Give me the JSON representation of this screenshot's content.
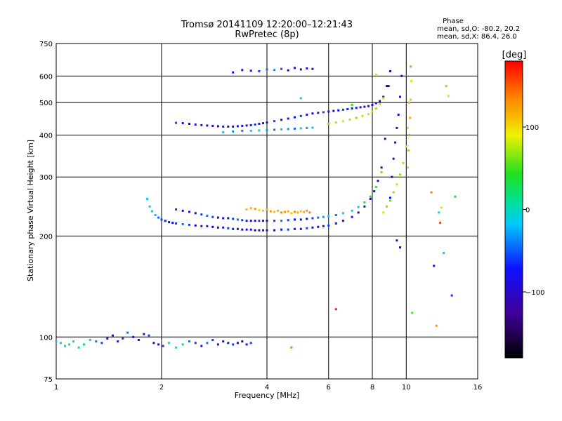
{
  "chart_data": {
    "type": "scatter",
    "title": "Tromsø 20141109 12:20:00–12:21:43",
    "subtitle": "RwPretec (8p)",
    "xlabel": "Frequency [MHz]",
    "ylabel": "Stationary phase Virtual Height [km]",
    "x_scale": "log",
    "y_scale": "log",
    "xlim": [
      1,
      16
    ],
    "ylim": [
      75,
      750
    ],
    "x_ticks": [
      1,
      2,
      4,
      6,
      8,
      10,
      16
    ],
    "x_tick_labels": [
      "1",
      "2",
      "4",
      "6",
      "8",
      "10",
      "16"
    ],
    "y_ticks": [
      75,
      100,
      200,
      300,
      400,
      500,
      600,
      750
    ],
    "y_tick_labels": [
      "75",
      "100",
      "200",
      "300",
      "400",
      "500",
      "600",
      "750"
    ],
    "grid": true,
    "stats": {
      "title": "Phase",
      "line_o": "mean, sd,O: -80.2, 20.2",
      "line_x": "mean, sd,X: 86.4, 26.0"
    },
    "colorbar": {
      "label": "[deg]",
      "range": [
        -180,
        180
      ],
      "ticks": [
        100,
        0,
        -100
      ],
      "tick_labels": [
        "100",
        "0",
        "−100"
      ]
    },
    "series": [
      {
        "x": [
          1.0,
          1.03,
          1.06,
          1.09,
          1.12,
          1.16,
          1.2,
          1.25,
          1.3,
          1.35,
          1.4,
          1.45,
          1.5,
          1.55,
          1.6,
          1.66,
          1.72,
          1.78,
          1.84,
          1.9,
          1.96,
          2.02,
          2.1,
          2.2,
          2.3,
          2.4,
          2.5,
          2.6,
          2.7,
          2.8,
          2.9,
          3.0,
          3.1,
          3.2,
          3.3,
          3.4,
          3.5,
          3.6
        ],
        "y": [
          97,
          96,
          94,
          95,
          97,
          93,
          95,
          98,
          97,
          96,
          99,
          101,
          97,
          99,
          103,
          100,
          98,
          102,
          101,
          96,
          95,
          94,
          96,
          93,
          95,
          97,
          96,
          94,
          96,
          98,
          95,
          97,
          96,
          95,
          96,
          97,
          95,
          96
        ],
        "phase": [
          -60,
          -40,
          -20,
          -20,
          -10,
          -10,
          -20,
          -60,
          -80,
          -90,
          -100,
          -110,
          -100,
          -90,
          -80,
          -100,
          -110,
          -100,
          -90,
          -100,
          -110,
          -90,
          -60,
          -40,
          -60,
          -80,
          -90,
          -100,
          -80,
          -90,
          -100,
          -110,
          -100,
          -90,
          -110,
          -120,
          -100,
          -90
        ]
      },
      {
        "x": [
          1.82,
          1.85,
          1.88,
          1.92,
          1.96,
          2.0,
          2.05,
          2.1,
          2.15,
          2.2,
          2.3,
          2.4,
          2.5,
          2.6,
          2.7,
          2.8,
          2.9,
          3.0,
          3.1,
          3.2,
          3.3,
          3.4,
          3.5,
          3.6,
          3.7,
          3.8,
          3.9,
          4.0,
          4.2,
          4.4,
          4.6,
          4.8,
          5.0,
          5.2,
          5.4,
          5.6,
          5.8,
          6.0,
          6.3,
          6.6,
          7.0,
          7.3,
          7.6,
          7.9,
          8.1,
          8.3,
          8.5,
          8.7,
          8.9
        ],
        "y": [
          258,
          245,
          237,
          231,
          227,
          224,
          222,
          220,
          219,
          218,
          217,
          216,
          215,
          214,
          214,
          213,
          212,
          212,
          211,
          210,
          210,
          209,
          209,
          209,
          208,
          208,
          208,
          208,
          208,
          209,
          209,
          210,
          210,
          211,
          212,
          213,
          214,
          215,
          218,
          222,
          228,
          235,
          245,
          258,
          272,
          292,
          320,
          390,
          560
        ],
        "phase": [
          -60,
          -50,
          -40,
          -60,
          -80,
          -90,
          -100,
          -110,
          -100,
          -90,
          -80,
          -90,
          -100,
          -110,
          -100,
          -100,
          -110,
          -100,
          -90,
          -100,
          -110,
          -110,
          -100,
          -100,
          -110,
          -100,
          -100,
          -110,
          -100,
          -100,
          -90,
          -100,
          -100,
          -90,
          -100,
          -110,
          -100,
          -90,
          -100,
          -110,
          -100,
          -120,
          -110,
          -120,
          -110,
          -120,
          -130,
          -130,
          -120
        ]
      },
      {
        "x": [
          2.2,
          2.3,
          2.4,
          2.5,
          2.6,
          2.7,
          2.8,
          2.9,
          3.0,
          3.1,
          3.2,
          3.3,
          3.4,
          3.5,
          3.6,
          3.7,
          3.8,
          3.9,
          4.0,
          4.2,
          4.4,
          4.6,
          4.8,
          5.0,
          5.2,
          5.4,
          5.6,
          5.8,
          6.0,
          6.3,
          6.6,
          7.0,
          7.3,
          7.6,
          7.9,
          8.2,
          8.5
        ],
        "y": [
          240,
          238,
          236,
          234,
          232,
          230,
          228,
          227,
          226,
          226,
          225,
          224,
          223,
          222,
          222,
          222,
          222,
          222,
          222,
          222,
          222,
          223,
          224,
          224,
          225,
          226,
          227,
          228,
          229,
          231,
          234,
          238,
          244,
          252,
          262,
          280,
          310
        ],
        "phase": [
          -90,
          -100,
          -110,
          -100,
          -90,
          -80,
          -90,
          -100,
          -110,
          -100,
          -90,
          -80,
          -90,
          -100,
          -110,
          -100,
          -90,
          -100,
          -110,
          -90,
          -80,
          -90,
          -100,
          -110,
          -100,
          -90,
          -80,
          -70,
          -60,
          -80,
          -60,
          -40,
          -20,
          10,
          30,
          40,
          50
        ]
      },
      {
        "x": [
          3.5,
          3.6,
          3.7,
          3.8,
          3.9,
          4.0,
          4.1,
          4.2,
          4.3,
          4.4,
          4.5,
          4.6,
          4.7,
          4.8,
          4.9,
          5.0,
          5.1,
          5.2,
          5.3
        ],
        "y": [
          240,
          242,
          241,
          239,
          238,
          240,
          237,
          236,
          238,
          235,
          236,
          237,
          234,
          236,
          235,
          237,
          236,
          238,
          235
        ],
        "phase": [
          110,
          120,
          130,
          100,
          110,
          120,
          130,
          110,
          120,
          140,
          130,
          120,
          110,
          130,
          120,
          110,
          120,
          130,
          140
        ]
      },
      {
        "x": [
          2.2,
          2.3,
          2.4,
          2.5,
          2.6,
          2.7,
          2.8,
          2.9,
          3.0,
          3.1,
          3.2,
          3.3,
          3.4,
          3.5,
          3.6,
          3.7,
          3.8,
          3.9,
          4.0,
          4.2,
          4.4,
          4.6,
          4.8,
          5.0,
          5.2,
          5.4,
          5.6,
          5.8,
          6.0,
          6.2,
          6.4,
          6.6,
          6.8,
          7.0,
          7.2,
          7.4,
          7.6,
          7.8,
          8.0,
          8.2,
          8.4,
          8.6,
          8.8,
          9.0
        ],
        "y": [
          435,
          434,
          432,
          430,
          428,
          427,
          426,
          425,
          424,
          424,
          424,
          425,
          426,
          427,
          428,
          430,
          432,
          434,
          436,
          440,
          444,
          448,
          452,
          456,
          460,
          464,
          466,
          468,
          470,
          472,
          474,
          476,
          478,
          480,
          482,
          484,
          486,
          488,
          492,
          498,
          505,
          520,
          560,
          620
        ],
        "phase": [
          -90,
          -100,
          -110,
          -100,
          -100,
          -110,
          -120,
          -110,
          -100,
          -110,
          -120,
          -110,
          -100,
          -110,
          -100,
          -90,
          -100,
          -110,
          -100,
          -90,
          -100,
          -110,
          -100,
          -90,
          -100,
          -110,
          -100,
          -90,
          -100,
          -110,
          -100,
          -90,
          -100,
          -100,
          -110,
          -120,
          -110,
          -100,
          -110,
          -120,
          -110,
          -120,
          -120,
          -130
        ]
      },
      {
        "x": [
          3.0,
          3.2,
          3.4,
          3.6,
          3.8,
          4.0,
          4.2,
          4.4,
          4.6,
          4.8,
          5.0,
          5.2,
          5.4
        ],
        "y": [
          408,
          410,
          412,
          412,
          413,
          414,
          415,
          416,
          417,
          418,
          419,
          420,
          421
        ],
        "phase": [
          -60,
          -70,
          -80,
          -60,
          -50,
          -70,
          -80,
          -60,
          -70,
          -80,
          -60,
          -70,
          -60
        ]
      },
      {
        "x": [
          6.0,
          6.3,
          6.6,
          6.9,
          7.2,
          7.5,
          7.8,
          8.0,
          8.2,
          8.4,
          8.6
        ],
        "y": [
          432,
          436,
          440,
          445,
          450,
          456,
          462,
          470,
          480,
          495,
          515
        ],
        "phase": [
          60,
          70,
          80,
          70,
          60,
          70,
          80,
          70,
          60,
          70,
          80
        ]
      },
      {
        "x": [
          3.2,
          3.4,
          3.6,
          3.8,
          4.0,
          4.2,
          4.4,
          4.6,
          4.8,
          5.0,
          5.2,
          5.4
        ],
        "y": [
          615,
          625,
          622,
          620,
          628,
          626,
          630,
          624,
          634,
          628,
          632,
          630
        ],
        "phase": [
          -100,
          -110,
          -100,
          -90,
          -80,
          -70,
          -90,
          -100,
          -110,
          -120,
          -100,
          -110
        ]
      },
      {
        "x": [
          9.0,
          9.1,
          9.2,
          9.3,
          9.4,
          9.5,
          9.6,
          9.7
        ],
        "y": [
          260,
          300,
          340,
          380,
          420,
          460,
          520,
          600
        ],
        "phase": [
          -100,
          -110,
          -120,
          -110,
          -100,
          -120,
          -110,
          -100
        ]
      },
      {
        "x": [
          8.6,
          8.8,
          9.0,
          9.2,
          9.4,
          9.6,
          9.8,
          10.0,
          10.1,
          10.2,
          10.3
        ],
        "y": [
          235,
          245,
          255,
          270,
          285,
          305,
          330,
          370,
          420,
          500,
          640
        ],
        "phase": [
          80,
          60,
          50,
          60,
          70,
          60,
          70,
          80,
          100,
          120,
          130
        ]
      },
      {
        "x": [
          10.1,
          10.15,
          10.2,
          10.25,
          10.3,
          10.35
        ],
        "y": [
          320,
          360,
          400,
          450,
          510,
          580
        ],
        "phase": [
          110,
          120,
          130,
          120,
          110,
          100
        ]
      },
      {
        "x": [
          4.7,
          5.0,
          6.3,
          7.0,
          8.2,
          9.4,
          9.6,
          10.4,
          11.8,
          12.0,
          12.2,
          12.4,
          12.5,
          12.6,
          12.8,
          13.0,
          13.2,
          13.5,
          13.8
        ],
        "y": [
          93,
          515,
          121,
          492,
          605,
          194,
          185,
          118,
          270,
          163,
          108,
          235,
          219,
          243,
          178,
          560,
          523,
          133,
          262
        ],
        "phase": [
          140,
          -20,
          170,
          40,
          80,
          -110,
          -120,
          40,
          140,
          -100,
          130,
          -40,
          160,
          80,
          -60,
          120,
          100,
          -90,
          30
        ]
      }
    ]
  }
}
